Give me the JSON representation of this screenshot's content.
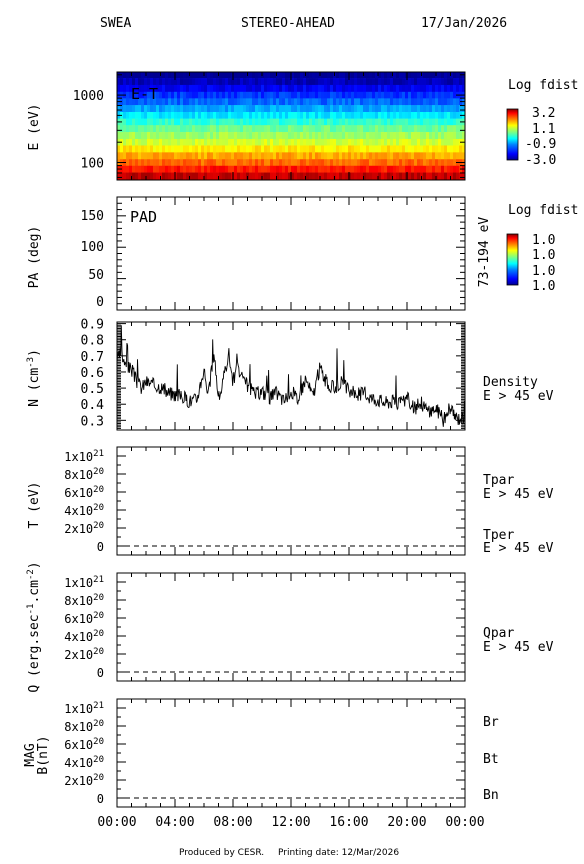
{
  "header": {
    "instrument": "SWEA",
    "spacecraft": "STEREO-AHEAD",
    "date": "17/Jan/2026"
  },
  "footer": {
    "produced_by": "Produced by CESR.",
    "printing_date": "Printing date: 12/Mar/2026"
  },
  "x_axis": {
    "ticks": [
      "00:00",
      "04:00",
      "08:00",
      "12:00",
      "16:00",
      "20:00",
      "00:00"
    ],
    "range_hours": [
      0,
      24
    ]
  },
  "colors": {
    "black": "#000000",
    "red": "#e00000",
    "blue": "#0000cc",
    "colorbar": [
      "#000090",
      "#0000ff",
      "#0080ff",
      "#00ffff",
      "#80ff80",
      "#ffff00",
      "#ff8000",
      "#ff0000",
      "#800000"
    ]
  },
  "chart_data": [
    {
      "type": "heatmap",
      "panel": "energy-time",
      "label": "E-T",
      "ylabel": "E (eV)",
      "yscale": "log",
      "ylim": [
        55,
        2200
      ],
      "yticks": [
        {
          "value": 1000,
          "label": "1000"
        },
        {
          "value": 100,
          "label": "100"
        }
      ],
      "energy_bands_ev": [
        2000,
        1600,
        1250,
        1000,
        800,
        630,
        500,
        400,
        320,
        250,
        200,
        160,
        125,
        100,
        80,
        63
      ],
      "log_fdist_bands": [
        -3.0,
        -2.7,
        -2.3,
        -1.9,
        -1.6,
        -1.2,
        -0.8,
        -0.4,
        0.0,
        0.3,
        0.6,
        1.0,
        1.4,
        1.8,
        2.3,
        2.8
      ],
      "colorbar": {
        "title": "Log fdist",
        "ticks": [
          "3.2",
          "1.1",
          "-0.9",
          "-3.0"
        ],
        "range": [
          -3.0,
          3.2
        ]
      }
    },
    {
      "type": "heatmap",
      "panel": "pitch-angle",
      "label": "PAD",
      "ylabel": "PA (deg)",
      "ylim": [
        0,
        180
      ],
      "yticks": [
        "0",
        "50",
        "100",
        "150"
      ],
      "right_label": "73-194 eV",
      "colorbar": {
        "title": "Log fdist",
        "ticks": [
          "1.0",
          "1.0",
          "1.0",
          "1.0"
        ]
      }
    },
    {
      "type": "line",
      "panel": "density",
      "ylabel_main": "N (cm",
      "ylabel_sup": "-3",
      "ylabel_end": ")",
      "ylim": [
        0.24,
        0.91
      ],
      "yticks": [
        "0.3",
        "0.4",
        "0.5",
        "0.6",
        "0.7",
        "0.8",
        "0.9"
      ],
      "series": [
        {
          "name": "Density",
          "name_line2": "E > 45 eV",
          "color": "#000000",
          "x_hours": [
            0.0,
            0.3,
            0.6,
            1.0,
            1.3,
            1.7,
            2.0,
            2.5,
            3.0,
            3.5,
            4.0,
            4.5,
            5.0,
            5.5,
            6.0,
            6.3,
            6.7,
            7.0,
            7.3,
            7.7,
            8.0,
            8.3,
            8.7,
            9.0,
            9.5,
            10.0,
            10.5,
            11.0,
            11.5,
            12.0,
            12.5,
            13.0,
            13.5,
            14.0,
            14.5,
            15.0,
            15.5,
            16.0,
            16.5,
            17.0,
            17.5,
            18.0,
            18.5,
            19.0,
            19.5,
            20.0,
            20.5,
            21.0,
            21.5,
            22.0,
            22.5,
            23.0,
            23.5,
            24.0
          ],
          "y": [
            0.67,
            0.72,
            0.63,
            0.62,
            0.55,
            0.5,
            0.54,
            0.52,
            0.51,
            0.47,
            0.46,
            0.45,
            0.42,
            0.43,
            0.62,
            0.46,
            0.72,
            0.43,
            0.53,
            0.72,
            0.54,
            0.63,
            0.54,
            0.52,
            0.46,
            0.48,
            0.44,
            0.47,
            0.42,
            0.48,
            0.43,
            0.56,
            0.45,
            0.63,
            0.52,
            0.5,
            0.54,
            0.48,
            0.46,
            0.47,
            0.44,
            0.43,
            0.41,
            0.42,
            0.4,
            0.44,
            0.37,
            0.41,
            0.35,
            0.38,
            0.3,
            0.36,
            0.31,
            0.33
          ]
        }
      ]
    },
    {
      "type": "line",
      "panel": "temperature",
      "ylabel": "T (eV)",
      "ylim": [
        -1e+20,
        1.1e+21
      ],
      "yticks": [
        {
          "mant": "0",
          "exp": ""
        },
        {
          "mant": "2x10",
          "exp": "20"
        },
        {
          "mant": "4x10",
          "exp": "20"
        },
        {
          "mant": "6x10",
          "exp": "20"
        },
        {
          "mant": "8x10",
          "exp": "20"
        },
        {
          "mant": "1x10",
          "exp": "21"
        }
      ],
      "series": [
        {
          "name": "Tpar",
          "name_line2": "E > 45 eV",
          "color": "#000000",
          "values": [
            0,
            0
          ]
        },
        {
          "name": "Tper",
          "name_line2": "E > 45 eV",
          "color": "#e00000",
          "values": [
            0,
            0
          ]
        }
      ]
    },
    {
      "type": "line",
      "panel": "heat-flux",
      "ylabel_main": "Q (erg.sec",
      "ylabel_sup1": "-1",
      "ylabel_mid": ".cm",
      "ylabel_sup2": "-2",
      "ylabel_end": ")",
      "ylim": [
        -1e+20,
        1.1e+21
      ],
      "yticks": [
        {
          "mant": "0",
          "exp": ""
        },
        {
          "mant": "2x10",
          "exp": "20"
        },
        {
          "mant": "4x10",
          "exp": "20"
        },
        {
          "mant": "6x10",
          "exp": "20"
        },
        {
          "mant": "8x10",
          "exp": "20"
        },
        {
          "mant": "1x10",
          "exp": "21"
        }
      ],
      "series": [
        {
          "name": "Qpar",
          "name_line2": "E > 45 eV",
          "color": "#000000",
          "values": [
            0,
            0
          ]
        }
      ]
    },
    {
      "type": "line",
      "panel": "magnetic-field",
      "ylabel_line1": "MAG",
      "ylabel_line2": "B(nT)",
      "ylim": [
        -1e+20,
        1.1e+21
      ],
      "yticks": [
        {
          "mant": "0",
          "exp": ""
        },
        {
          "mant": "2x10",
          "exp": "20"
        },
        {
          "mant": "4x10",
          "exp": "20"
        },
        {
          "mant": "6x10",
          "exp": "20"
        },
        {
          "mant": "8x10",
          "exp": "20"
        },
        {
          "mant": "1x10",
          "exp": "21"
        }
      ],
      "series": [
        {
          "name": "Br",
          "color": "#000000",
          "values": [
            0,
            0
          ]
        },
        {
          "name": "Bt",
          "color": "#e00000",
          "values": [
            0,
            0
          ]
        },
        {
          "name": "Bn",
          "color": "#0000cc",
          "values": [
            0,
            0
          ]
        }
      ]
    }
  ]
}
